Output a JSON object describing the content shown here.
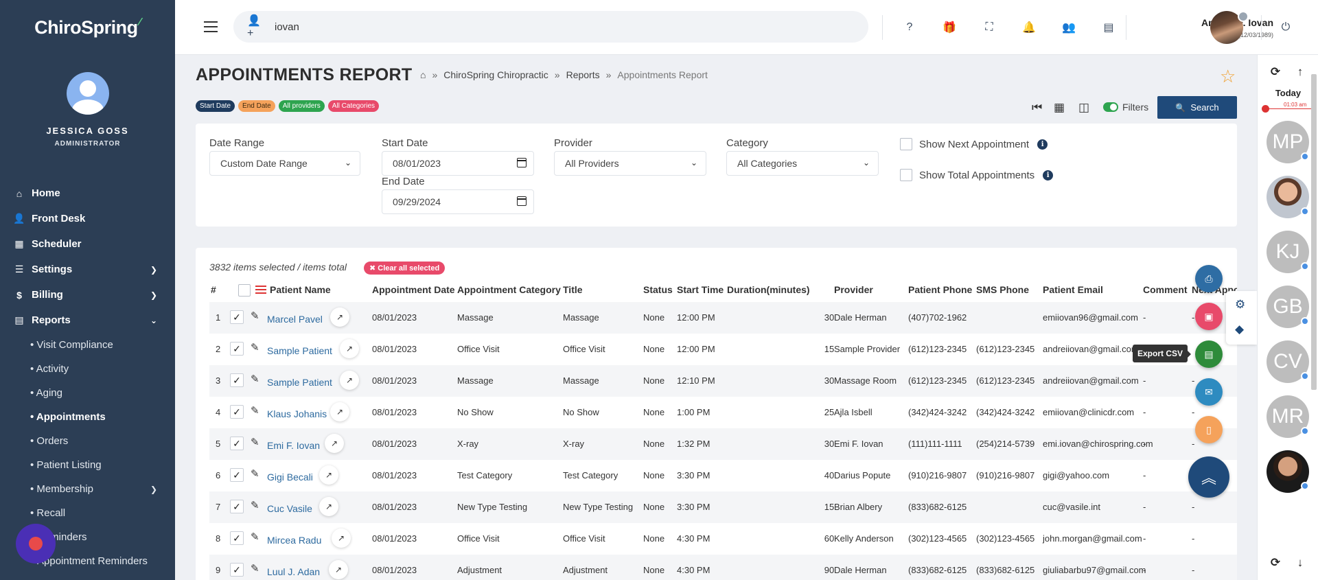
{
  "app": {
    "logo": "ChiroSpring"
  },
  "user": {
    "name": "JESSICA GOSS",
    "role": "ADMINISTRATOR"
  },
  "sidebar": {
    "items": [
      {
        "label": "Home",
        "icon": "home-icon"
      },
      {
        "label": "Front Desk",
        "icon": "front-desk-icon"
      },
      {
        "label": "Scheduler",
        "icon": "calendar-icon"
      },
      {
        "label": "Settings",
        "icon": "sliders-icon"
      },
      {
        "label": "Billing",
        "icon": "dollar-icon"
      },
      {
        "label": "Reports",
        "icon": "document-icon"
      }
    ],
    "subitems": [
      {
        "label": "• Visit Compliance"
      },
      {
        "label": "• Activity"
      },
      {
        "label": "• Aging"
      },
      {
        "label": "• Appointments"
      },
      {
        "label": "• Orders"
      },
      {
        "label": "• Patient Listing"
      },
      {
        "label": "• Membership"
      },
      {
        "label": "• Recall"
      },
      {
        "label": "Reminders"
      },
      {
        "label": "Appointment Reminders"
      }
    ]
  },
  "topbar": {
    "search_value": "iovan",
    "profile_name": "Andrei W. Iovan",
    "profile_sub": "Age: 33 (12/03/1989)"
  },
  "page": {
    "title": "APPOINTMENTS REPORT",
    "breadcrumb": [
      "ChiroSpring Chiropractic",
      "Reports",
      "Appointments Report"
    ],
    "tags": [
      "Start Date",
      "End Date",
      "All providers",
      "All Categories"
    ],
    "filters_label": "Filters",
    "search_label": "Search"
  },
  "filters": {
    "date_range_label": "Date Range",
    "date_range_value": "Custom Date Range",
    "start_date_label": "Start Date",
    "start_date_value": "08/01/2023",
    "end_date_label": "End Date",
    "end_date_value": "09/29/2024",
    "provider_label": "Provider",
    "provider_value": "All Providers",
    "category_label": "Category",
    "category_value": "All Categories",
    "show_next_label": "Show Next Appointment",
    "show_total_label": "Show Total Appointments"
  },
  "table": {
    "selection_info": "3832 items selected / items total",
    "clear_label": "✖ Clear all selected",
    "columns": [
      "#",
      "Patient Name",
      "Appointment Date",
      "Appointment Category",
      "Title",
      "Status",
      "Start Time",
      "Duration(minutes)",
      "Provider",
      "Patient Phone",
      "SMS Phone",
      "Patient Email",
      "Comment",
      "Next Appo"
    ],
    "rows": [
      {
        "n": "1",
        "name": "Marcel Pavel",
        "date": "08/01/2023",
        "category": "Massage",
        "title": "Massage",
        "status": "None",
        "start": "12:00 PM",
        "duration": "30",
        "provider": "Dale Herman",
        "phone": "(407)702-1962",
        "sms": "",
        "email": "emiiovan96@gmail.com",
        "comment": "-",
        "next": "-"
      },
      {
        "n": "2",
        "name": "Sample Patient",
        "date": "08/01/2023",
        "category": "Office Visit",
        "title": "Office Visit",
        "status": "None",
        "start": "12:00 PM",
        "duration": "15",
        "provider": "Sample Provider",
        "phone": "(612)123-2345",
        "sms": "(612)123-2345",
        "email": "andreiiovan@gmail.com",
        "comment": "-",
        "next": ""
      },
      {
        "n": "3",
        "name": "Sample Patient",
        "date": "08/01/2023",
        "category": "Massage",
        "title": "Massage",
        "status": "None",
        "start": "12:10 PM",
        "duration": "30",
        "provider": "Massage Room",
        "phone": "(612)123-2345",
        "sms": "(612)123-2345",
        "email": "andreiiovan@gmail.com",
        "comment": "-",
        "next": "-"
      },
      {
        "n": "4",
        "name": "Klaus Johanis",
        "date": "08/01/2023",
        "category": "No Show",
        "title": "No Show",
        "status": "None",
        "start": "1:00 PM",
        "duration": "25",
        "provider": "Ajla Isbell",
        "phone": "(342)424-3242",
        "sms": "(342)424-3242",
        "email": "emiiovan@clinicdr.com",
        "comment": "-",
        "next": "-"
      },
      {
        "n": "5",
        "name": "Emi F. Iovan",
        "date": "08/01/2023",
        "category": "X-ray",
        "title": "X-ray",
        "status": "None",
        "start": "1:32 PM",
        "duration": "30",
        "provider": "Emi F. Iovan",
        "phone": "(111)111-1111",
        "sms": "(254)214-5739",
        "email": "emi.iovan@chirospring.com",
        "comment": "-",
        "next": "-"
      },
      {
        "n": "6",
        "name": "Gigi Becali",
        "date": "08/01/2023",
        "category": "Test Category",
        "title": "Test Category",
        "status": "None",
        "start": "3:30 PM",
        "duration": "40",
        "provider": "Darius Popute",
        "phone": "(910)216-9807",
        "sms": "(910)216-9807",
        "email": "gigi@yahoo.com",
        "comment": "-",
        "next": "-"
      },
      {
        "n": "7",
        "name": "Cuc Vasile",
        "date": "08/01/2023",
        "category": "New Type Testing",
        "title": "New Type Testing",
        "status": "None",
        "start": "3:30 PM",
        "duration": "15",
        "provider": "Brian Albery",
        "phone": "(833)682-6125",
        "sms": "",
        "email": "cuc@vasile.int",
        "comment": "-",
        "next": "-"
      },
      {
        "n": "8",
        "name": "Mircea Radu",
        "date": "08/01/2023",
        "category": "Office Visit",
        "title": "Office Visit",
        "status": "None",
        "start": "4:30 PM",
        "duration": "60",
        "provider": "Kelly Anderson",
        "phone": "(302)123-4565",
        "sms": "(302)123-4565",
        "email": "john.morgan@gmail.com",
        "comment": "-",
        "next": "-"
      },
      {
        "n": "9",
        "name": "Luul J. Adan",
        "date": "08/01/2023",
        "category": "Adjustment",
        "title": "Adjustment",
        "status": "None",
        "start": "4:30 PM",
        "duration": "90",
        "provider": "Dale Herman",
        "phone": "(833)682-6125",
        "sms": "(833)682-6125",
        "email": "giuliabarbu97@gmail.com",
        "comment": "-",
        "next": "-"
      }
    ]
  },
  "rightrail": {
    "today_label": "Today",
    "time_label": "01:03 am",
    "avatars": [
      "MP",
      "",
      "KJ",
      "GB",
      "CV",
      "MR",
      ""
    ]
  },
  "fabs": {
    "tooltip": "Export CSV"
  },
  "colors": {
    "sidebar": "#2c3e55",
    "accent": "#1f4a7a",
    "link": "#2d6a9f",
    "danger": "#e84a6a",
    "success": "#2ea44f",
    "warning": "#f5a25b",
    "info": "#2e8bc0"
  }
}
